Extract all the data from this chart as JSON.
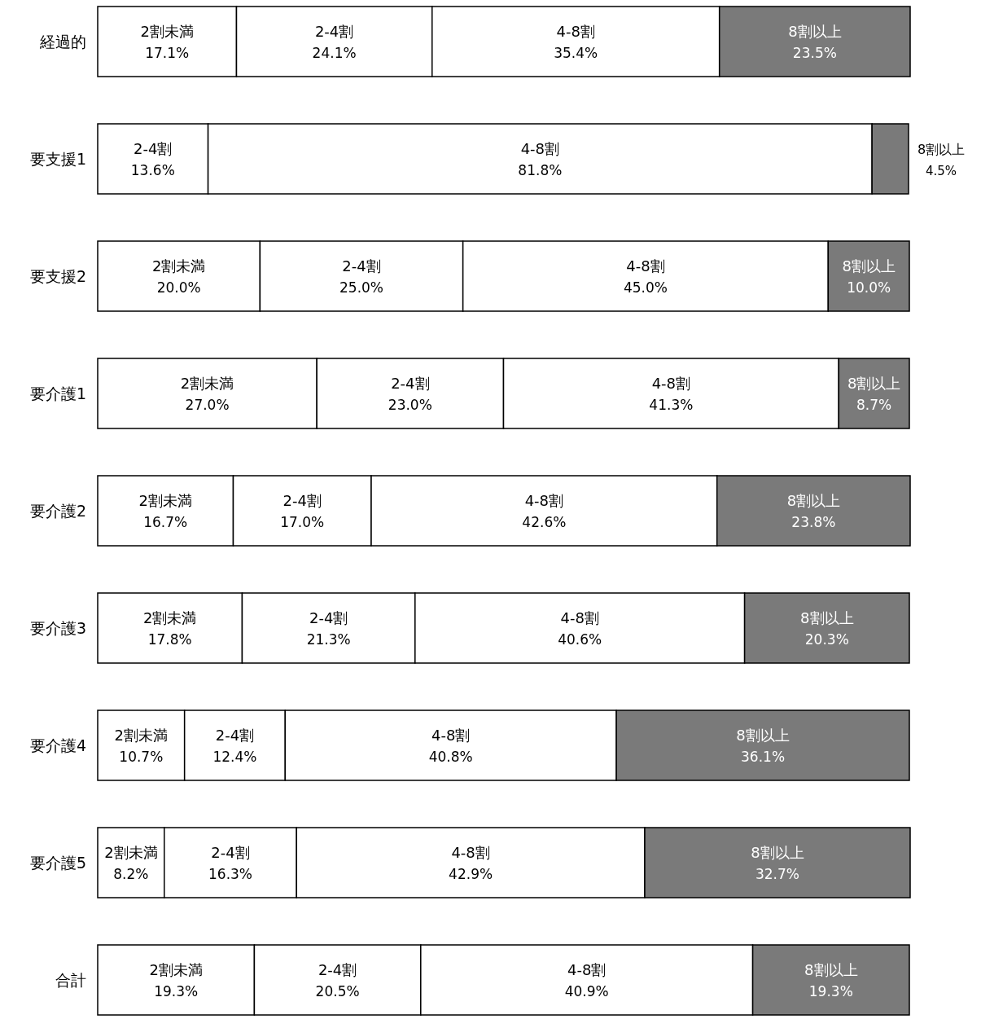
{
  "chart_data": {
    "type": "bar",
    "orientation": "horizontal",
    "stacked": true,
    "categories": [
      "経過的",
      "要支援1",
      "要支援2",
      "要介護1",
      "要介護2",
      "要介護3",
      "要介護4",
      "要介護5",
      "合計"
    ],
    "series": [
      {
        "name": "2割未満",
        "color": "#ffffff",
        "values": [
          17.1,
          null,
          20.0,
          27.0,
          16.7,
          17.8,
          10.7,
          8.2,
          19.3
        ],
        "value_labels": [
          "17.1%",
          null,
          "20.0%",
          "27.0%",
          "16.7%",
          "17.8%",
          "10.7%",
          "8.2%",
          "19.3%"
        ]
      },
      {
        "name": "2-4割",
        "color": "#ffffff",
        "values": [
          24.1,
          13.6,
          25.0,
          23.0,
          17.0,
          21.3,
          12.4,
          16.3,
          20.5
        ],
        "value_labels": [
          "24.1%",
          "13.6%",
          "25.0%",
          "23.0%",
          "17.0%",
          "21.3%",
          "12.4%",
          "16.3%",
          "20.5%"
        ]
      },
      {
        "name": "4-8割",
        "color": "#ffffff",
        "values": [
          35.4,
          81.8,
          45.0,
          41.3,
          42.6,
          40.6,
          40.8,
          42.9,
          40.9
        ],
        "value_labels": [
          "35.4%",
          "81.8%",
          "45.0%",
          "41.3%",
          "42.6%",
          "40.6%",
          "40.8%",
          "42.9%",
          "40.9%"
        ]
      },
      {
        "name": "8割以上",
        "color": "#7a7a7a",
        "values": [
          23.5,
          4.5,
          10.0,
          8.7,
          23.8,
          20.3,
          36.1,
          32.7,
          19.3
        ],
        "value_labels": [
          "23.5%",
          "4.5%",
          "10.0%",
          "8.7%",
          "23.8%",
          "20.3%",
          "36.1%",
          "32.7%",
          "19.3%"
        ]
      }
    ]
  }
}
